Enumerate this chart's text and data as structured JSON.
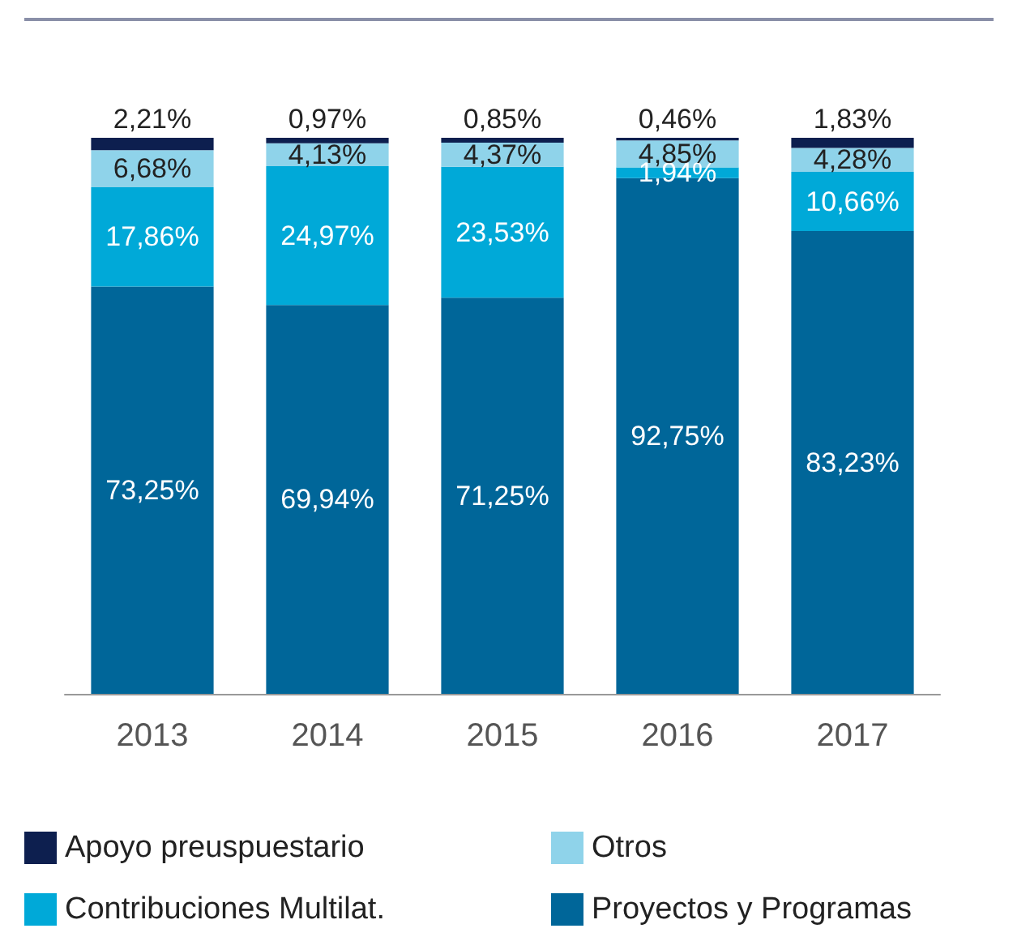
{
  "chart_data": {
    "type": "bar",
    "stacked": true,
    "legend": "bottom",
    "categories": [
      "2013",
      "2014",
      "2015",
      "2016",
      "2017"
    ],
    "series": [
      {
        "name": "Proyectos y Programas",
        "color": "#006699",
        "values": [
          73.25,
          69.94,
          71.25,
          92.75,
          83.23
        ],
        "value_labels": [
          "73,25%",
          "69,94%",
          "71,25%",
          "92,75%",
          "83,23%"
        ]
      },
      {
        "name": "Contribuciones Multilat.",
        "color": "#00a9d8",
        "values": [
          17.86,
          24.97,
          23.53,
          1.94,
          10.66
        ],
        "value_labels": [
          "17,86%",
          "24,97%",
          "23,53%",
          "1,94%",
          "10,66%"
        ]
      },
      {
        "name": "Otros",
        "color": "#8fd3ea",
        "values": [
          6.68,
          4.13,
          4.37,
          4.85,
          4.28
        ],
        "value_labels": [
          "6,68%",
          "4,13%",
          "4,37%",
          "4,85%",
          "4,28%"
        ]
      },
      {
        "name": "Apoyo preuspuestario",
        "color": "#0d1f4f",
        "values": [
          2.21,
          0.97,
          0.85,
          0.46,
          1.83
        ],
        "value_labels": [
          "2,21%",
          "0,97%",
          "0,85%",
          "0,46%",
          "1,83%"
        ]
      }
    ]
  }
}
